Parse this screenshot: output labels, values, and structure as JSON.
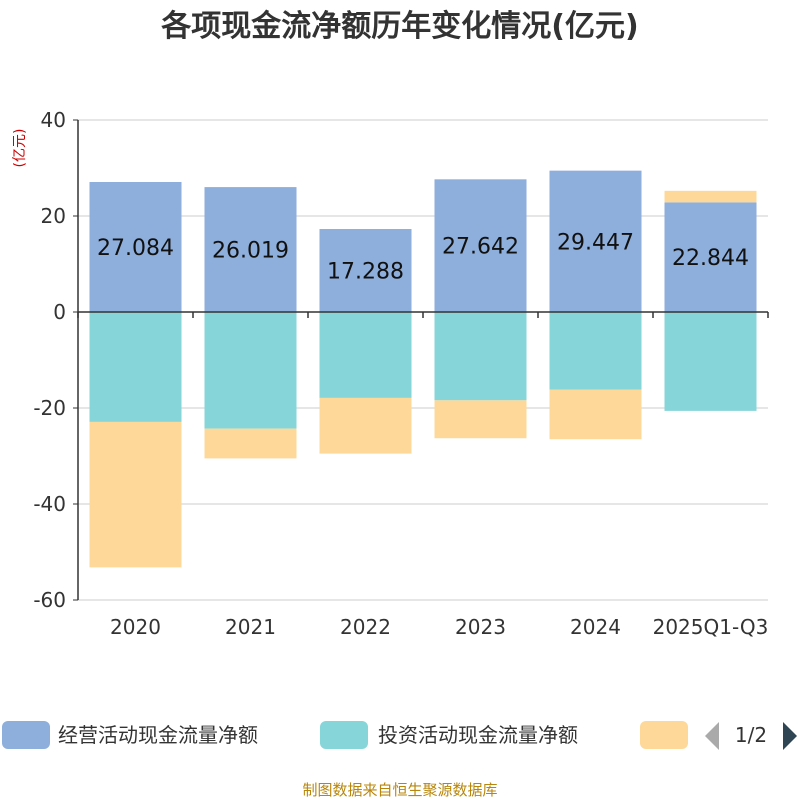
{
  "chart_data": {
    "type": "bar",
    "stacked": true,
    "title": "各项现金流净额历年变化情况(亿元)",
    "ylabel": "(亿元)",
    "ylim": [
      -60,
      40
    ],
    "yticks": [
      40,
      20,
      0,
      -20,
      -40,
      -60
    ],
    "categories": [
      "2020",
      "2021",
      "2022",
      "2023",
      "2024",
      "2025Q1-Q3"
    ],
    "series": [
      {
        "name": "经营活动现金流量净额",
        "color": "#8eaedb",
        "values": [
          27.084,
          26.019,
          17.288,
          27.642,
          29.447,
          22.844
        ],
        "labels": [
          "27.084",
          "26.019",
          "17.288",
          "27.642",
          "29.447",
          "22.844"
        ]
      },
      {
        "name": "投资活动现金流量净额",
        "color": "#86d5d8",
        "values": [
          -22.9,
          -24.3,
          -17.9,
          -18.4,
          -16.2,
          -20.6
        ]
      },
      {
        "name": "",
        "color": "#fdd899",
        "values": [
          -30.3,
          -6.2,
          -11.6,
          -7.9,
          -10.3,
          2.4
        ]
      }
    ],
    "legend": {
      "position": "bottom",
      "page": "1/2"
    },
    "source": "制图数据来自恒生聚源数据库"
  }
}
